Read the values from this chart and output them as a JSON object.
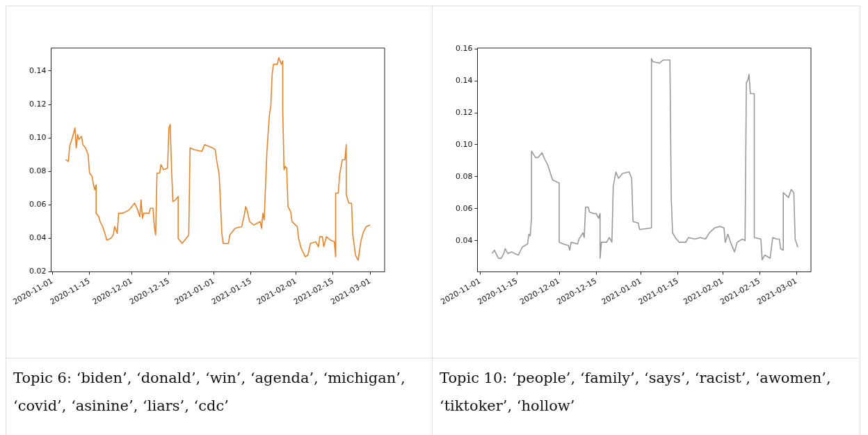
{
  "chart_data": [
    {
      "type": "line",
      "color": "#e8832a",
      "x": [
        "2020-11-06",
        "2020-11-07",
        "2020-11-07T12:00",
        "2020-11-08T12:00",
        "2020-11-09T12:00",
        "2020-11-10",
        "2020-11-10T12:00",
        "2020-11-11",
        "2020-11-12",
        "2020-11-12T12:00",
        "2020-11-13T12:00",
        "2020-11-14T12:00",
        "2020-11-15",
        "2020-11-16",
        "2020-11-16T12:00",
        "2020-11-17",
        "2020-11-17T12:00",
        "2020-11-17T12:00",
        "2020-11-18T12:00",
        "2020-11-19",
        "2020-11-20",
        "2020-11-21",
        "2020-11-21T12:00",
        "2020-11-23",
        "2020-11-24",
        "2020-11-24T12:00",
        "2020-11-25T12:00",
        "2020-11-26",
        "2020-11-27T12:00",
        "2020-11-30",
        "2020-12-01",
        "2020-12-02",
        "2020-12-03",
        "2020-12-04",
        "2020-12-04T12:00",
        "2020-12-05",
        "2020-12-05T12:00",
        "2020-12-07T12:00",
        "2020-12-08",
        "2020-12-09",
        "2020-12-09T12:00",
        "2020-12-10",
        "2020-12-10T12:00",
        "2020-12-11T12:00",
        "2020-12-12",
        "2020-12-13",
        "2020-12-14T12:00",
        "2020-12-15",
        "2020-12-15T12:00",
        "2020-12-16",
        "2020-12-16T12:00",
        "2020-12-17T12:00",
        "2020-12-18T12:00",
        "2020-12-18T12:00",
        "2020-12-20",
        "2020-12-21",
        "2020-12-22T12:00",
        "2020-12-23",
        "2020-12-24T12:00",
        "2020-12-27T12:00",
        "2020-12-28T12:00",
        "2020-12-31T12:00",
        "2021-01-01T12:00",
        "2021-01-02",
        "2021-01-03",
        "2021-01-04",
        "2021-01-04T12:00",
        "2021-01-06T12:00",
        "2021-01-07",
        "2021-01-09",
        "2021-01-11T12:00",
        "2021-01-12T12:00",
        "2021-01-13",
        "2021-01-13T12:00",
        "2021-01-14T12:00",
        "2021-01-16",
        "2021-01-18T12:00",
        "2021-01-19",
        "2021-01-19T12:00",
        "2021-01-20",
        "2021-01-20T12:00",
        "2021-01-21",
        "2021-01-21T12:00",
        "2021-01-22",
        "2021-01-22T12:00",
        "2021-01-23",
        "2021-01-23T12:00",
        "2021-01-25",
        "2021-01-25T12:00",
        "2021-01-26T12:00",
        "2021-01-27",
        "2021-01-27",
        "2021-01-27T12:00",
        "2021-01-28",
        "2021-01-28T12:00",
        "2021-01-29",
        "2021-01-30",
        "2021-01-30T12:00",
        "2021-02-01T12:00",
        "2021-02-02",
        "2021-02-03",
        "2021-02-04T12:00",
        "2021-02-05T12:00",
        "2021-02-06T12:00",
        "2021-02-08T12:00",
        "2021-02-09T12:00",
        "2021-02-10",
        "2021-02-11",
        "2021-02-11T12:00",
        "2021-02-12T12:00",
        "2021-02-14",
        "2021-02-15T12:00",
        "2021-02-16",
        "2021-02-16",
        "2021-02-17",
        "2021-02-17T12:00",
        "2021-02-18T12:00",
        "2021-02-19T12:00",
        "2021-02-20",
        "2021-02-20",
        "2021-02-21",
        "2021-02-22",
        "2021-02-22T12:00",
        "2021-02-23T12:00",
        "2021-02-24T12:00",
        "2021-02-25T12:00",
        "2021-02-26T12:00",
        "2021-02-27T12:00",
        "2021-03-01"
      ],
      "values": [
        0.087,
        0.086,
        0.095,
        0.1,
        0.106,
        0.094,
        0.102,
        0.099,
        0.101,
        0.096,
        0.094,
        0.09,
        0.079,
        0.077,
        0.072,
        0.069,
        0.072,
        0.055,
        0.053,
        0.05,
        0.047,
        0.042,
        0.039,
        0.04,
        0.042,
        0.047,
        0.043,
        0.055,
        0.055,
        0.057,
        0.059,
        0.061,
        0.058,
        0.053,
        0.063,
        0.052,
        0.055,
        0.055,
        0.058,
        0.058,
        0.047,
        0.042,
        0.079,
        0.079,
        0.084,
        0.081,
        0.082,
        0.106,
        0.108,
        0.082,
        0.062,
        0.063,
        0.065,
        0.04,
        0.037,
        0.039,
        0.042,
        0.094,
        0.093,
        0.092,
        0.096,
        0.094,
        0.093,
        0.087,
        0.078,
        0.043,
        0.037,
        0.037,
        0.042,
        0.046,
        0.047,
        0.054,
        0.059,
        0.057,
        0.05,
        0.048,
        0.05,
        0.046,
        0.055,
        0.051,
        0.071,
        0.091,
        0.103,
        0.114,
        0.119,
        0.138,
        0.144,
        0.144,
        0.148,
        0.144,
        0.146,
        0.117,
        0.081,
        0.083,
        0.082,
        0.059,
        0.056,
        0.05,
        0.047,
        0.04,
        0.034,
        0.029,
        0.03,
        0.037,
        0.038,
        0.035,
        0.041,
        0.041,
        0.035,
        0.041,
        0.039,
        0.038,
        0.029,
        0.067,
        0.067,
        0.078,
        0.087,
        0.087,
        0.096,
        0.066,
        0.061,
        0.061,
        0.042,
        0.03,
        0.027,
        0.038,
        0.044,
        0.047,
        0.048
      ],
      "xlim": [
        "2020-10-31T12:00",
        "2021-03-06T12:00"
      ],
      "xticks": [
        "2020-11-01",
        "2020-11-15",
        "2020-12-01",
        "2020-12-15",
        "2021-01-01",
        "2021-01-15",
        "2021-02-01",
        "2021-02-15",
        "2021-03-01"
      ],
      "ylim": [
        0.02,
        0.1537
      ],
      "yticks": [
        0.02,
        0.04,
        0.06,
        0.08,
        {
          "value": 0.1,
          "label": "0.10"
        },
        0.12,
        0.14
      ],
      "annotations": [
        "Topic 6: ‘biden’, ‘donald’, ‘win’, ‘agenda’, ‘michigan’, ‘covid’, ‘asinine’, ‘liars’, ‘cdc’"
      ]
    },
    {
      "type": "line",
      "color": "#999999",
      "x": [
        "2020-11-05T12:00",
        "2020-11-06T12:00",
        "2020-11-07",
        "2020-11-08",
        "2020-11-09",
        "2020-11-10",
        "2020-11-10T12:00",
        "2020-11-11T12:00",
        "2020-11-13",
        "2020-11-14",
        "2020-11-15T12:00",
        "2020-11-17",
        "2020-11-18",
        "2020-11-19",
        "2020-11-19T12:00",
        "2020-11-20",
        "2020-11-20T12:00",
        "2020-11-20T12:00",
        "2020-11-22",
        "2020-11-23",
        "2020-11-24T12:00",
        "2020-11-25T12:00",
        "2020-11-26T12:00",
        "2020-11-27T12:00",
        "2020-11-28T12:00",
        "2020-12-01",
        "2020-12-01",
        "2020-12-02T12:00",
        "2020-12-04T12:00",
        "2020-12-05",
        "2020-12-05T12:00",
        "2020-12-08",
        "2020-12-08T12:00",
        "2020-12-10",
        "2020-12-10T12:00",
        "2020-12-11",
        "2020-12-12",
        "2020-12-12T12:00",
        "2020-12-14",
        "2020-12-15",
        "2020-12-16",
        "2020-12-16T12:00",
        "2020-12-16T12:00",
        "2020-12-17",
        "2020-12-19",
        "2020-12-20",
        "2020-12-21",
        "2020-12-21T12:00",
        "2020-12-22T12:00",
        "2020-12-23T12:00",
        "2020-12-25",
        "2020-12-27T12:00",
        "2020-12-28T12:00",
        "2020-12-29",
        "2020-12-31",
        "2020-12-31T12:00",
        "2021-01-05",
        "2021-01-05",
        "2021-01-05T12:00",
        "2021-01-08",
        "2021-01-09T12:00",
        "2021-01-12",
        "2021-01-12T12:00",
        "2021-01-13",
        "2021-01-14",
        "2021-01-15T12:00",
        "2021-01-18",
        "2021-01-19",
        "2021-01-21T12:00",
        "2021-01-23T12:00",
        "2021-01-25T12:00",
        "2021-01-27",
        "2021-01-29",
        "2021-01-31",
        "2021-02-01T12:00",
        "2021-02-02",
        "2021-02-03",
        "2021-02-04",
        "2021-02-05T12:00",
        "2021-02-06T12:00",
        "2021-02-08T12:00",
        "2021-02-09T12:00",
        "2021-02-10",
        "2021-02-10T12:00",
        "2021-02-11",
        "2021-02-11T12:00",
        "2021-02-13",
        "2021-02-13",
        "2021-02-15T12:00",
        "2021-02-16",
        "2021-02-17",
        "2021-02-18",
        "2021-02-19",
        "2021-02-20",
        "2021-02-21T12:00",
        "2021-02-22T12:00",
        "2021-02-23",
        "2021-02-24",
        "2021-02-24",
        "2021-02-26",
        "2021-02-27",
        "2021-02-28",
        "2021-02-28T12:00",
        "2021-03-01T12:00"
      ],
      "values": [
        0.032,
        0.034,
        0.032,
        0.029,
        0.029,
        0.032,
        0.035,
        0.032,
        0.033,
        0.032,
        0.031,
        0.036,
        0.037,
        0.038,
        0.044,
        0.043,
        0.054,
        0.096,
        0.092,
        0.092,
        0.095,
        0.091,
        0.088,
        0.083,
        0.078,
        0.076,
        0.039,
        0.038,
        0.037,
        0.034,
        0.039,
        0.038,
        0.041,
        0.045,
        0.042,
        0.061,
        0.061,
        0.058,
        0.057,
        0.057,
        0.054,
        0.057,
        0.029,
        0.039,
        0.039,
        0.042,
        0.039,
        0.074,
        0.083,
        0.079,
        0.082,
        0.083,
        0.079,
        0.052,
        0.051,
        0.047,
        0.048,
        0.154,
        0.152,
        0.151,
        0.153,
        0.153,
        0.067,
        0.045,
        0.042,
        0.039,
        0.039,
        0.042,
        0.041,
        0.042,
        0.041,
        0.045,
        0.048,
        0.049,
        0.048,
        0.039,
        0.044,
        0.039,
        0.033,
        0.039,
        0.041,
        0.04,
        0.139,
        0.14,
        0.144,
        0.132,
        0.132,
        0.042,
        0.041,
        0.028,
        0.031,
        0.03,
        0.029,
        0.042,
        0.041,
        0.041,
        0.035,
        0.034,
        0.07,
        0.067,
        0.072,
        0.07,
        0.041,
        0.036
      ],
      "xlim": [
        "2020-10-31",
        "2021-03-06T12:00"
      ],
      "xticks": [
        "2020-11-01",
        "2020-11-15",
        "2020-12-01",
        "2020-12-15",
        "2021-01-01",
        "2021-01-15",
        "2021-02-01",
        "2021-02-15",
        "2021-03-01"
      ],
      "ylim": [
        0.0205,
        0.1605
      ],
      "yticks": [
        0.04,
        0.06,
        0.08,
        {
          "value": 0.1,
          "label": "0.10"
        },
        0.12,
        0.14,
        0.16
      ],
      "annotations": [
        "Topic 10: ‘people’, ‘family’, ‘says’, ‘racist’, ‘awomen’, ‘tiktoker’, ‘hollow’"
      ]
    }
  ]
}
